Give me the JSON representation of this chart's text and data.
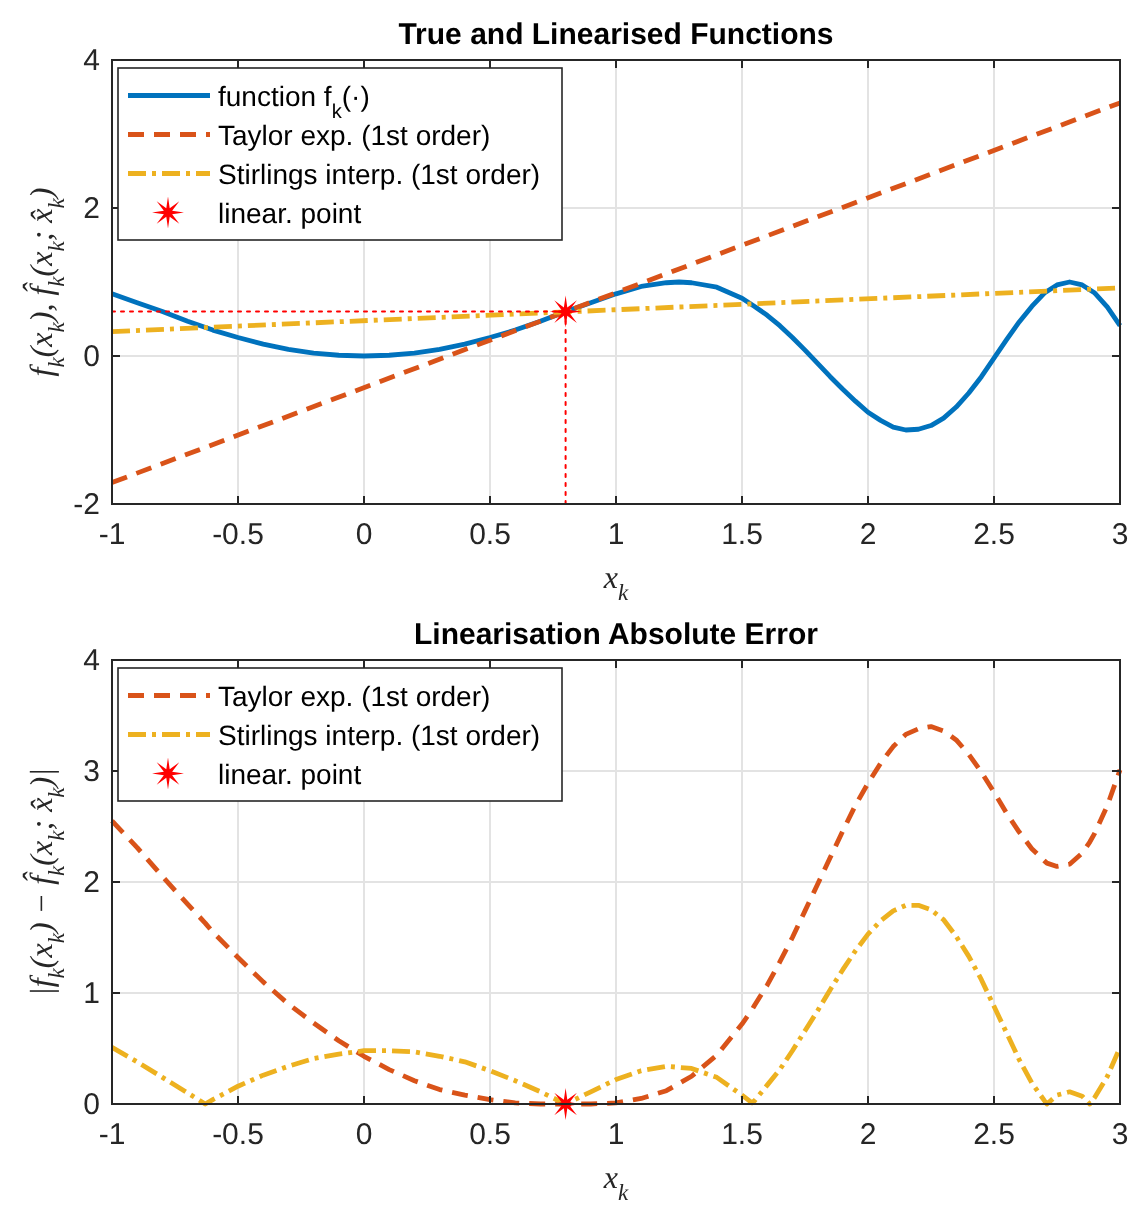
{
  "chart_data": [
    {
      "type": "line",
      "title": "True and Linearised Functions",
      "xlabel": "x$_{k}$",
      "ylabel": "f$_{k}$(x$_{k}$), f̂$_{k}$(x$_{k}$; x̂$_{k}$)",
      "xlim": [
        -1,
        3
      ],
      "ylim": [
        -2,
        4
      ],
      "xticks": [
        -1,
        -0.5,
        0,
        0.5,
        1,
        1.5,
        2,
        2.5,
        3
      ],
      "yticks": [
        -2,
        0,
        2,
        4
      ],
      "grid": true,
      "legend": "top left",
      "series": [
        {
          "name": "function f$_{k}$(·)",
          "color": "#0072bd",
          "line_style": "solid",
          "x": [
            -1,
            -0.9,
            -0.8,
            -0.7,
            -0.6,
            -0.5,
            -0.4,
            -0.3,
            -0.2,
            -0.1,
            0,
            0.1,
            0.2,
            0.3,
            0.4,
            0.5,
            0.6,
            0.7,
            0.8,
            0.9,
            1,
            1.1,
            1.2,
            1.25,
            1.3,
            1.4,
            1.5,
            1.55,
            1.6,
            1.65,
            1.7,
            1.75,
            1.8,
            1.85,
            1.9,
            1.95,
            2,
            2.05,
            2.1,
            2.15,
            2.2,
            2.25,
            2.3,
            2.35,
            2.4,
            2.45,
            2.5,
            2.55,
            2.6,
            2.65,
            2.7,
            2.75,
            2.8,
            2.85,
            2.9,
            2.95,
            3
          ],
          "values": [
            0.84,
            0.72,
            0.6,
            0.47,
            0.35,
            0.25,
            0.16,
            0.09,
            0.04,
            0.01,
            0,
            0.01,
            0.04,
            0.09,
            0.16,
            0.25,
            0.35,
            0.47,
            0.6,
            0.72,
            0.84,
            0.94,
            0.99,
            1,
            0.99,
            0.93,
            0.78,
            0.67,
            0.55,
            0.41,
            0.25,
            0.08,
            -0.1,
            -0.28,
            -0.45,
            -0.61,
            -0.76,
            -0.87,
            -0.96,
            -1,
            -0.99,
            -0.94,
            -0.84,
            -0.69,
            -0.5,
            -0.28,
            -0.03,
            0.22,
            0.46,
            0.67,
            0.85,
            0.96,
            1,
            0.96,
            0.85,
            0.66,
            0.41
          ]
        },
        {
          "name": "Taylor exp. (1st order)",
          "color": "#d95319",
          "line_style": "dashed",
          "x": [
            -1,
            3
          ],
          "values": [
            -1.71,
            3.42
          ]
        },
        {
          "name": "Stirlings interp. (1st order)",
          "color": "#edb120",
          "line_style": "dashdot",
          "x": [
            -1,
            3
          ],
          "values": [
            0.33,
            0.92
          ]
        },
        {
          "type": "line",
          "color": "#ff0000",
          "line_style": "dotted",
          "x": [
            -1,
            0.8
          ],
          "values": [
            0.6,
            0.6
          ]
        },
        {
          "type": "line",
          "color": "#ff0000",
          "line_style": "dotted",
          "x": [
            0.8,
            0.8
          ],
          "values": [
            -2,
            0.6
          ]
        },
        {
          "type": "scatter",
          "name": "linear. point",
          "color": "#ff0000",
          "marker": "star",
          "x": [
            0.8
          ],
          "values": [
            0.6
          ]
        }
      ]
    },
    {
      "type": "line",
      "title": "Linearisation Absolute Error",
      "xlabel": "x$_{k}$",
      "ylabel": "|f$_{k}$(x$_{k}$) − f̂$_{k}$(x$_{k}$; x̂$_{k}$)|",
      "xlim": [
        -1,
        3
      ],
      "ylim": [
        0,
        4
      ],
      "xticks": [
        -1,
        -0.5,
        0,
        0.5,
        1,
        1.5,
        2,
        2.5,
        3
      ],
      "yticks": [
        0,
        1,
        2,
        3,
        4
      ],
      "grid": true,
      "legend": "top left",
      "series": [
        {
          "name": "Taylor exp. (1st order)",
          "color": "#d95319",
          "line_style": "dashed",
          "x": [
            -1,
            -0.9,
            -0.8,
            -0.7,
            -0.63,
            -0.6,
            -0.5,
            -0.4,
            -0.3,
            -0.2,
            -0.1,
            0,
            0.1,
            0.2,
            0.3,
            0.4,
            0.5,
            0.6,
            0.7,
            0.8,
            0.9,
            1,
            1.1,
            1.2,
            1.3,
            1.4,
            1.5,
            1.54,
            1.55,
            1.6,
            1.65,
            1.7,
            1.75,
            1.8,
            1.85,
            1.9,
            1.95,
            2,
            2.05,
            2.1,
            2.15,
            2.2,
            2.25,
            2.3,
            2.35,
            2.4,
            2.45,
            2.5,
            2.55,
            2.6,
            2.65,
            2.7,
            2.71,
            2.75,
            2.8,
            2.85,
            2.88,
            2.9,
            2.95,
            3
          ],
          "values": [
            2.55,
            2.31,
            2.05,
            1.8,
            1.63,
            1.55,
            1.32,
            1.1,
            0.9,
            0.73,
            0.57,
            0.43,
            0.31,
            0.21,
            0.13,
            0.08,
            0.04,
            0.01,
            0,
            0,
            0,
            0.01,
            0.05,
            0.12,
            0.25,
            0.44,
            0.72,
            0.85,
            0.89,
            1.07,
            1.28,
            1.5,
            1.74,
            1.98,
            2.22,
            2.46,
            2.69,
            2.89,
            3.07,
            3.22,
            3.33,
            3.38,
            3.4,
            3.36,
            3.28,
            3.15,
            2.99,
            2.81,
            2.62,
            2.45,
            2.3,
            2.19,
            2.17,
            2.14,
            2.16,
            2.26,
            2.36,
            2.44,
            2.69,
            3.01
          ]
        },
        {
          "name": "Stirlings interp. (1st order)",
          "color": "#edb120",
          "line_style": "dashdot",
          "x": [
            -1,
            -0.9,
            -0.8,
            -0.7,
            -0.63,
            -0.6,
            -0.5,
            -0.4,
            -0.3,
            -0.2,
            -0.1,
            0,
            0.1,
            0.2,
            0.3,
            0.4,
            0.5,
            0.6,
            0.7,
            0.8,
            0.9,
            1,
            1.1,
            1.2,
            1.3,
            1.4,
            1.5,
            1.54,
            1.55,
            1.6,
            1.65,
            1.7,
            1.75,
            1.8,
            1.85,
            1.9,
            1.95,
            2,
            2.05,
            2.1,
            2.15,
            2.2,
            2.25,
            2.3,
            2.35,
            2.4,
            2.45,
            2.5,
            2.55,
            2.6,
            2.65,
            2.7,
            2.71,
            2.75,
            2.8,
            2.85,
            2.88,
            2.9,
            2.95,
            3
          ],
          "values": [
            0.51,
            0.38,
            0.24,
            0.1,
            0,
            0.04,
            0.16,
            0.26,
            0.34,
            0.41,
            0.45,
            0.48,
            0.48,
            0.47,
            0.43,
            0.38,
            0.3,
            0.21,
            0.11,
            0,
            0.11,
            0.22,
            0.3,
            0.34,
            0.32,
            0.24,
            0.08,
            0.01,
            0.03,
            0.17,
            0.31,
            0.48,
            0.66,
            0.84,
            1.03,
            1.21,
            1.38,
            1.53,
            1.65,
            1.74,
            1.79,
            1.79,
            1.75,
            1.66,
            1.51,
            1.33,
            1.12,
            0.88,
            0.64,
            0.4,
            0.19,
            0.03,
            0,
            0.08,
            0.11,
            0.07,
            0,
            0.06,
            0.25,
            0.51
          ]
        },
        {
          "type": "scatter",
          "name": "linear. point",
          "color": "#ff0000",
          "marker": "star",
          "x": [
            0.8
          ],
          "values": [
            0
          ]
        }
      ]
    }
  ]
}
